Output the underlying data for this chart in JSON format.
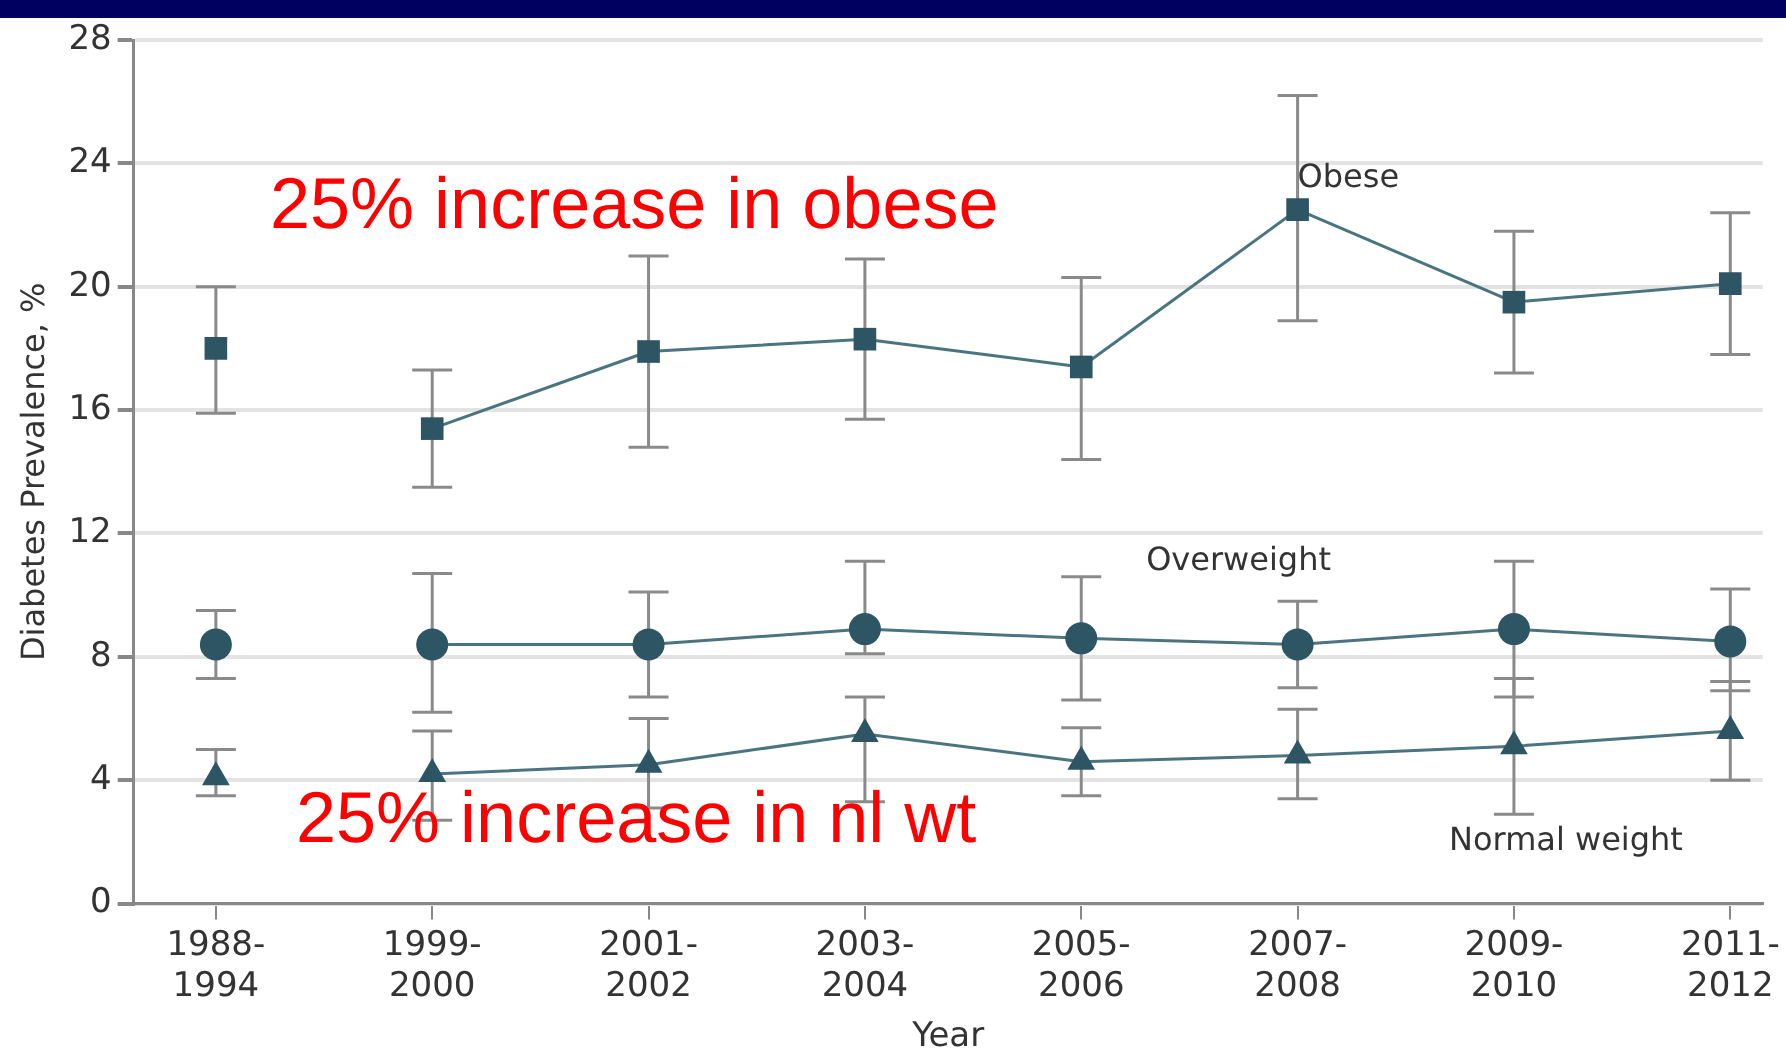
{
  "chart_data": {
    "type": "line",
    "xlabel": "Year",
    "ylabel": "Diabetes Prevalence, %",
    "categories": [
      "1988-1994",
      "1999-2000",
      "2001-2002",
      "2003-2004",
      "2005-2006",
      "2007-2008",
      "2009-2010",
      "2011-2012"
    ],
    "ylim": [
      0,
      28
    ],
    "yticks": [
      0,
      4,
      8,
      12,
      16,
      20,
      24,
      28
    ],
    "grid": "y",
    "legend": false,
    "series": [
      {
        "name": "Obese",
        "type": "line",
        "marker": "square",
        "color": "#2d5563",
        "values": [
          null,
          15.4,
          17.9,
          18.3,
          17.4,
          22.5,
          19.5,
          20.1
        ],
        "errors": [
          null,
          [
            13.5,
            17.3
          ],
          [
            14.8,
            21.0
          ],
          [
            15.7,
            20.9
          ],
          [
            14.4,
            20.3
          ],
          [
            18.9,
            26.2
          ],
          [
            17.2,
            21.8
          ],
          [
            17.8,
            22.4
          ]
        ]
      },
      {
        "type": "scatter",
        "marker": "square",
        "color": "#2d5563",
        "x": [
          "1988-1994"
        ],
        "values": [
          18.0
        ],
        "errors": [
          [
            15.9,
            20.0
          ]
        ]
      },
      {
        "name": "Overweight",
        "type": "line",
        "marker": "circle",
        "color": "#2d5563",
        "values": [
          null,
          8.4,
          8.4,
          8.9,
          8.6,
          8.4,
          8.9,
          8.5
        ],
        "errors": [
          null,
          [
            6.2,
            10.7
          ],
          [
            6.7,
            10.1
          ],
          [
            8.1,
            11.1
          ],
          [
            6.6,
            10.6
          ],
          [
            7.0,
            9.8
          ],
          [
            6.7,
            11.1
          ],
          [
            6.9,
            10.2
          ]
        ]
      },
      {
        "type": "scatter",
        "marker": "circle",
        "color": "#2d5563",
        "x": [
          "1988-1994"
        ],
        "values": [
          8.4
        ],
        "errors": [
          [
            7.3,
            9.5
          ]
        ]
      },
      {
        "name": "Normal weight",
        "type": "line",
        "marker": "triangle",
        "color": "#2d5563",
        "values": [
          null,
          4.2,
          4.5,
          5.5,
          4.6,
          4.8,
          5.1,
          5.6
        ],
        "errors": [
          null,
          [
            2.7,
            5.6
          ],
          [
            3.1,
            6.0
          ],
          [
            3.3,
            6.7
          ],
          [
            3.5,
            5.7
          ],
          [
            3.4,
            6.3
          ],
          [
            2.9,
            7.3
          ],
          [
            4.0,
            7.2
          ]
        ]
      },
      {
        "type": "scatter",
        "marker": "triangle",
        "color": "#2d5563",
        "x": [
          "1988-1994"
        ],
        "values": [
          4.1
        ],
        "errors": [
          [
            3.5,
            5.0
          ]
        ]
      }
    ],
    "annotations": [
      "25% increase in obese",
      "25% increase in nl wt"
    ]
  }
}
